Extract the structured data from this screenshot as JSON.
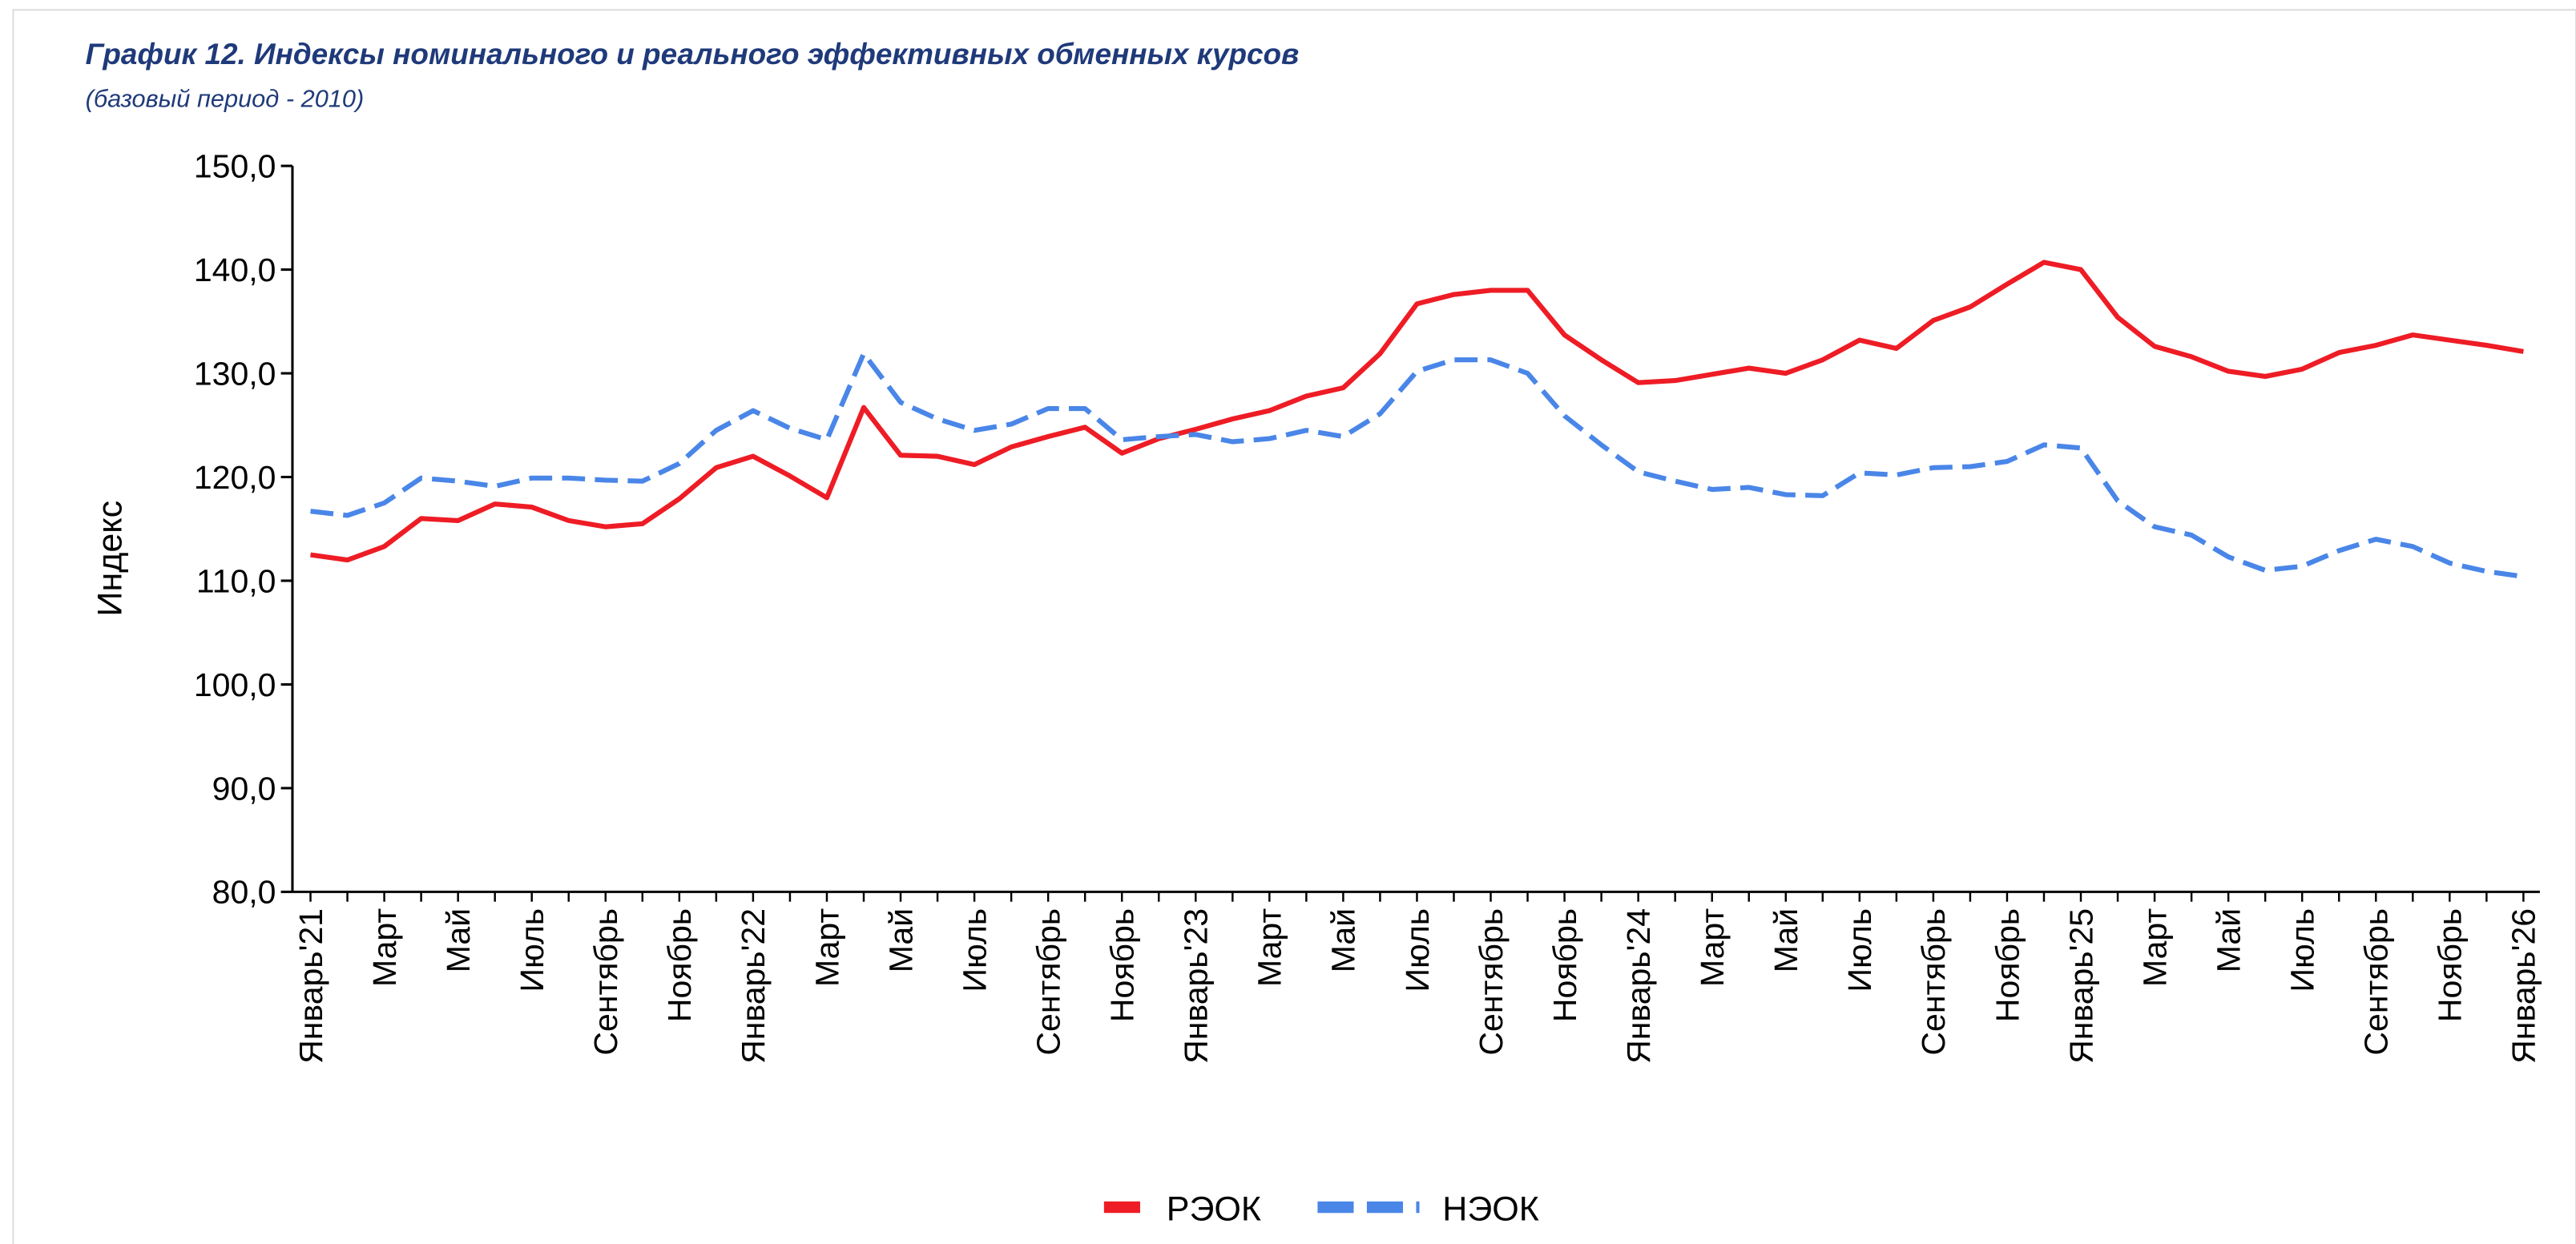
{
  "chart_data": {
    "type": "line",
    "title": "График 12. Индексы номинального и реального эффективных обменных курсов",
    "subtitle": "(базовый период - 2010)",
    "y_label": "Индекс",
    "categories": [
      "Январь'21",
      null,
      "Март",
      null,
      "Май",
      null,
      "Июль",
      null,
      "Сентябрь",
      null,
      "Ноябрь",
      null,
      "Январь'22",
      null,
      "Март",
      null,
      "Май",
      null,
      "Июль",
      null,
      "Сентябрь",
      null,
      "Ноябрь",
      null,
      "Январь'23",
      null,
      "Март",
      null,
      "Май",
      null,
      "Июль",
      null,
      "Сентябрь",
      null,
      "Ноябрь",
      null,
      "Январь'24",
      null,
      "Март",
      null,
      "Май",
      null,
      "Июль",
      null,
      "Сентябрь",
      null,
      "Ноябрь",
      null,
      "Январь'25",
      null,
      "Март",
      null,
      "Май",
      null,
      "Июль",
      null,
      "Сентябрь",
      null,
      "Ноябрь",
      null,
      "Январь'26"
    ],
    "series": [
      {
        "name": "РЭОК",
        "color": "#ee1c25",
        "dash": false,
        "values": [
          112.5,
          112.0,
          113.3,
          116.0,
          115.8,
          117.4,
          117.1,
          115.8,
          115.2,
          115.5,
          117.9,
          120.9,
          122.0,
          120.1,
          118.0,
          126.7,
          122.1,
          122.0,
          121.2,
          122.9,
          123.9,
          124.8,
          122.3,
          123.7,
          124.6,
          125.6,
          126.4,
          127.8,
          128.6,
          131.9,
          136.7,
          137.6,
          138.0,
          138.0,
          133.7,
          131.3,
          129.1,
          129.3,
          129.9,
          130.5,
          130.0,
          131.3,
          133.2,
          132.4,
          135.1,
          136.4,
          138.6,
          140.7,
          140.0,
          135.4,
          132.6,
          131.6,
          130.2,
          129.7,
          130.4,
          132.0,
          132.7,
          133.7,
          133.2,
          132.7,
          132.1
        ]
      },
      {
        "name": "НЭОК",
        "color": "#4a86e8",
        "dash": true,
        "values": [
          116.7,
          116.3,
          117.5,
          119.9,
          119.6,
          119.1,
          119.9,
          119.9,
          119.7,
          119.6,
          121.3,
          124.5,
          126.4,
          124.7,
          123.6,
          131.9,
          127.2,
          125.6,
          124.5,
          125.1,
          126.6,
          126.6,
          123.6,
          123.9,
          124.1,
          123.4,
          123.7,
          124.5,
          123.9,
          126.1,
          130.2,
          131.3,
          131.3,
          130.0,
          125.9,
          123.1,
          120.5,
          119.6,
          118.8,
          119.0,
          118.3,
          118.2,
          120.4,
          120.2,
          120.9,
          121.0,
          121.5,
          123.1,
          122.8,
          117.7,
          115.2,
          114.4,
          112.3,
          111.0,
          111.4,
          112.9,
          114.0,
          113.3,
          111.7,
          110.9,
          110.4
        ]
      }
    ],
    "ylim": [
      80,
      150
    ],
    "yticks": [
      {
        "value": 80,
        "label": "80,0"
      },
      {
        "value": 90,
        "label": "90,0"
      },
      {
        "value": 100,
        "label": "100,0"
      },
      {
        "value": 110,
        "label": "110,0"
      },
      {
        "value": 120,
        "label": "120,0"
      },
      {
        "value": 130,
        "label": "130,0"
      },
      {
        "value": 140,
        "label": "140,0"
      },
      {
        "value": 150,
        "label": "150,0"
      }
    ],
    "legend": "bottom",
    "grid": false
  }
}
